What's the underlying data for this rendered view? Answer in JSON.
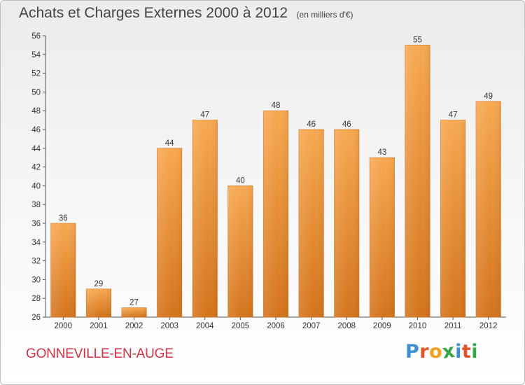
{
  "header": {
    "title": "Achats et Charges Externes 2000 à 2012",
    "subtitle": "(en milliers d'€)"
  },
  "footer": {
    "commune": "GONNEVILLE-EN-AUGE",
    "brand": "Proxiti",
    "brand_letters": [
      "P",
      "r",
      "o",
      "x",
      "i",
      "t",
      "i"
    ],
    "brand_colors": [
      "#3f8fd0",
      "#e0542b",
      "#f0a020",
      "#3aa44a",
      "#3f8fd0",
      "#e0542b",
      "#3aa44a"
    ]
  },
  "chart_data": {
    "type": "bar",
    "title": "Achats et Charges Externes 2000 à 2012",
    "subtitle": "(en milliers d'€)",
    "xlabel": "",
    "ylabel": "",
    "categories": [
      "2000",
      "2001",
      "2002",
      "2003",
      "2004",
      "2005",
      "2006",
      "2007",
      "2008",
      "2009",
      "2010",
      "2011",
      "2012"
    ],
    "values": [
      36,
      29,
      27,
      44,
      47,
      40,
      48,
      46,
      46,
      43,
      55,
      47,
      49
    ],
    "ylim": [
      26,
      56
    ],
    "yticks": [
      26,
      28,
      30,
      32,
      34,
      36,
      38,
      40,
      42,
      44,
      46,
      48,
      50,
      52,
      54,
      56
    ],
    "grid": false,
    "bar_color": "#ee8a2e",
    "bar_color_light": "#f7a850",
    "bar_color_dark": "#d4741c"
  }
}
